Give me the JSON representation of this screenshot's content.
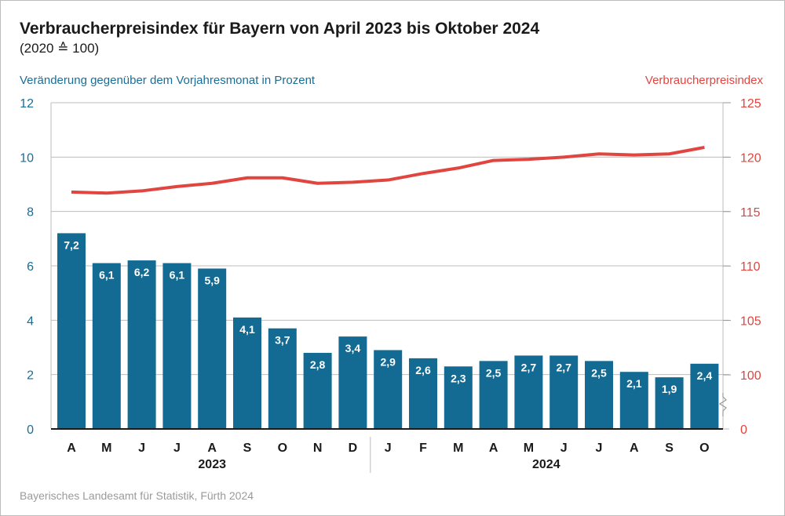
{
  "chart_data": {
    "type": "bar+line",
    "title": "Verbraucherpreisindex für Bayern von April 2023 bis Oktober 2024",
    "subtitle": "(2020 ≙ 100)",
    "categories": [
      "A",
      "M",
      "J",
      "J",
      "A",
      "S",
      "O",
      "N",
      "D",
      "J",
      "F",
      "M",
      "A",
      "M",
      "J",
      "J",
      "A",
      "S",
      "O"
    ],
    "year_groups": [
      {
        "label": "2023",
        "count": 9
      },
      {
        "label": "2024",
        "count": 10
      }
    ],
    "series": [
      {
        "name": "Veränderung gegenüber dem Vorjahresmonat in Prozent",
        "type": "bar",
        "axis": "left",
        "color": "#136b94",
        "values": [
          7.2,
          6.1,
          6.2,
          6.1,
          5.9,
          4.1,
          3.7,
          2.8,
          3.4,
          2.9,
          2.6,
          2.3,
          2.5,
          2.7,
          2.7,
          2.5,
          2.1,
          1.9,
          2.4
        ],
        "labels": [
          "7,2",
          "6,1",
          "6,2",
          "6,1",
          "5,9",
          "4,1",
          "3,7",
          "2,8",
          "3,4",
          "2,9",
          "2,6",
          "2,3",
          "2,5",
          "2,7",
          "2,7",
          "2,5",
          "2,1",
          "1,9",
          "2,4"
        ]
      },
      {
        "name": "Verbraucherpreisindex",
        "type": "line",
        "axis": "right",
        "color": "#e0453f",
        "values": [
          116.8,
          116.7,
          116.9,
          117.3,
          117.6,
          118.1,
          118.1,
          117.6,
          117.7,
          117.9,
          118.5,
          119.0,
          119.7,
          119.8,
          120.0,
          120.3,
          120.2,
          120.3,
          120.9
        ]
      }
    ],
    "left_axis": {
      "ylim": [
        0,
        12
      ],
      "ticks": [
        "0",
        "2",
        "4",
        "6",
        "8",
        "10",
        "12"
      ]
    },
    "right_axis": {
      "ylim": [
        100,
        125
      ],
      "ticks": [
        "100",
        "105",
        "110",
        "115",
        "120",
        "125"
      ],
      "break_label": "0",
      "axis_break": true
    },
    "grid": true,
    "source": "Bayerisches Landesamt für Statistik, Fürth 2024"
  }
}
